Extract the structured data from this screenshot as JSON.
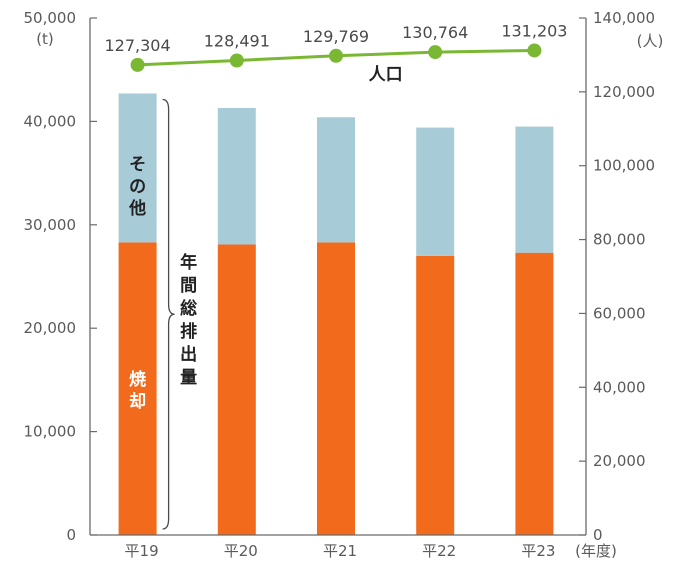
{
  "chart_data": {
    "type": "bar",
    "stacked": true,
    "categories": [
      "平19",
      "平20",
      "平21",
      "平22",
      "平23"
    ],
    "x_unit_label": "(年度)",
    "series": [
      {
        "name": "焼却",
        "values": [
          28300,
          28100,
          28300,
          27000,
          27300
        ],
        "color": "#f26b1d"
      },
      {
        "name": "その他",
        "values": [
          14400,
          13200,
          12100,
          12400,
          12200
        ],
        "color": "#a8cbd8"
      }
    ],
    "bracket_label": "年間総排出量",
    "line_series": {
      "name": "人口",
      "values": [
        127304,
        128491,
        129769,
        130764,
        131203
      ],
      "labels": [
        "127,304",
        "128,491",
        "129,769",
        "130,764",
        "131,203"
      ],
      "color": "#7ab833"
    },
    "left_axis": {
      "unit": "(t)",
      "ylim": [
        0,
        50000
      ],
      "ticks": [
        "0",
        "10,000",
        "20,000",
        "30,000",
        "40,000",
        "50,000"
      ]
    },
    "right_axis": {
      "unit": "(人)",
      "ylim": [
        0,
        140000
      ],
      "ticks": [
        "0",
        "20,000",
        "40,000",
        "60,000",
        "80,000",
        "100,000",
        "120,000",
        "140,000"
      ]
    },
    "grid": false
  }
}
